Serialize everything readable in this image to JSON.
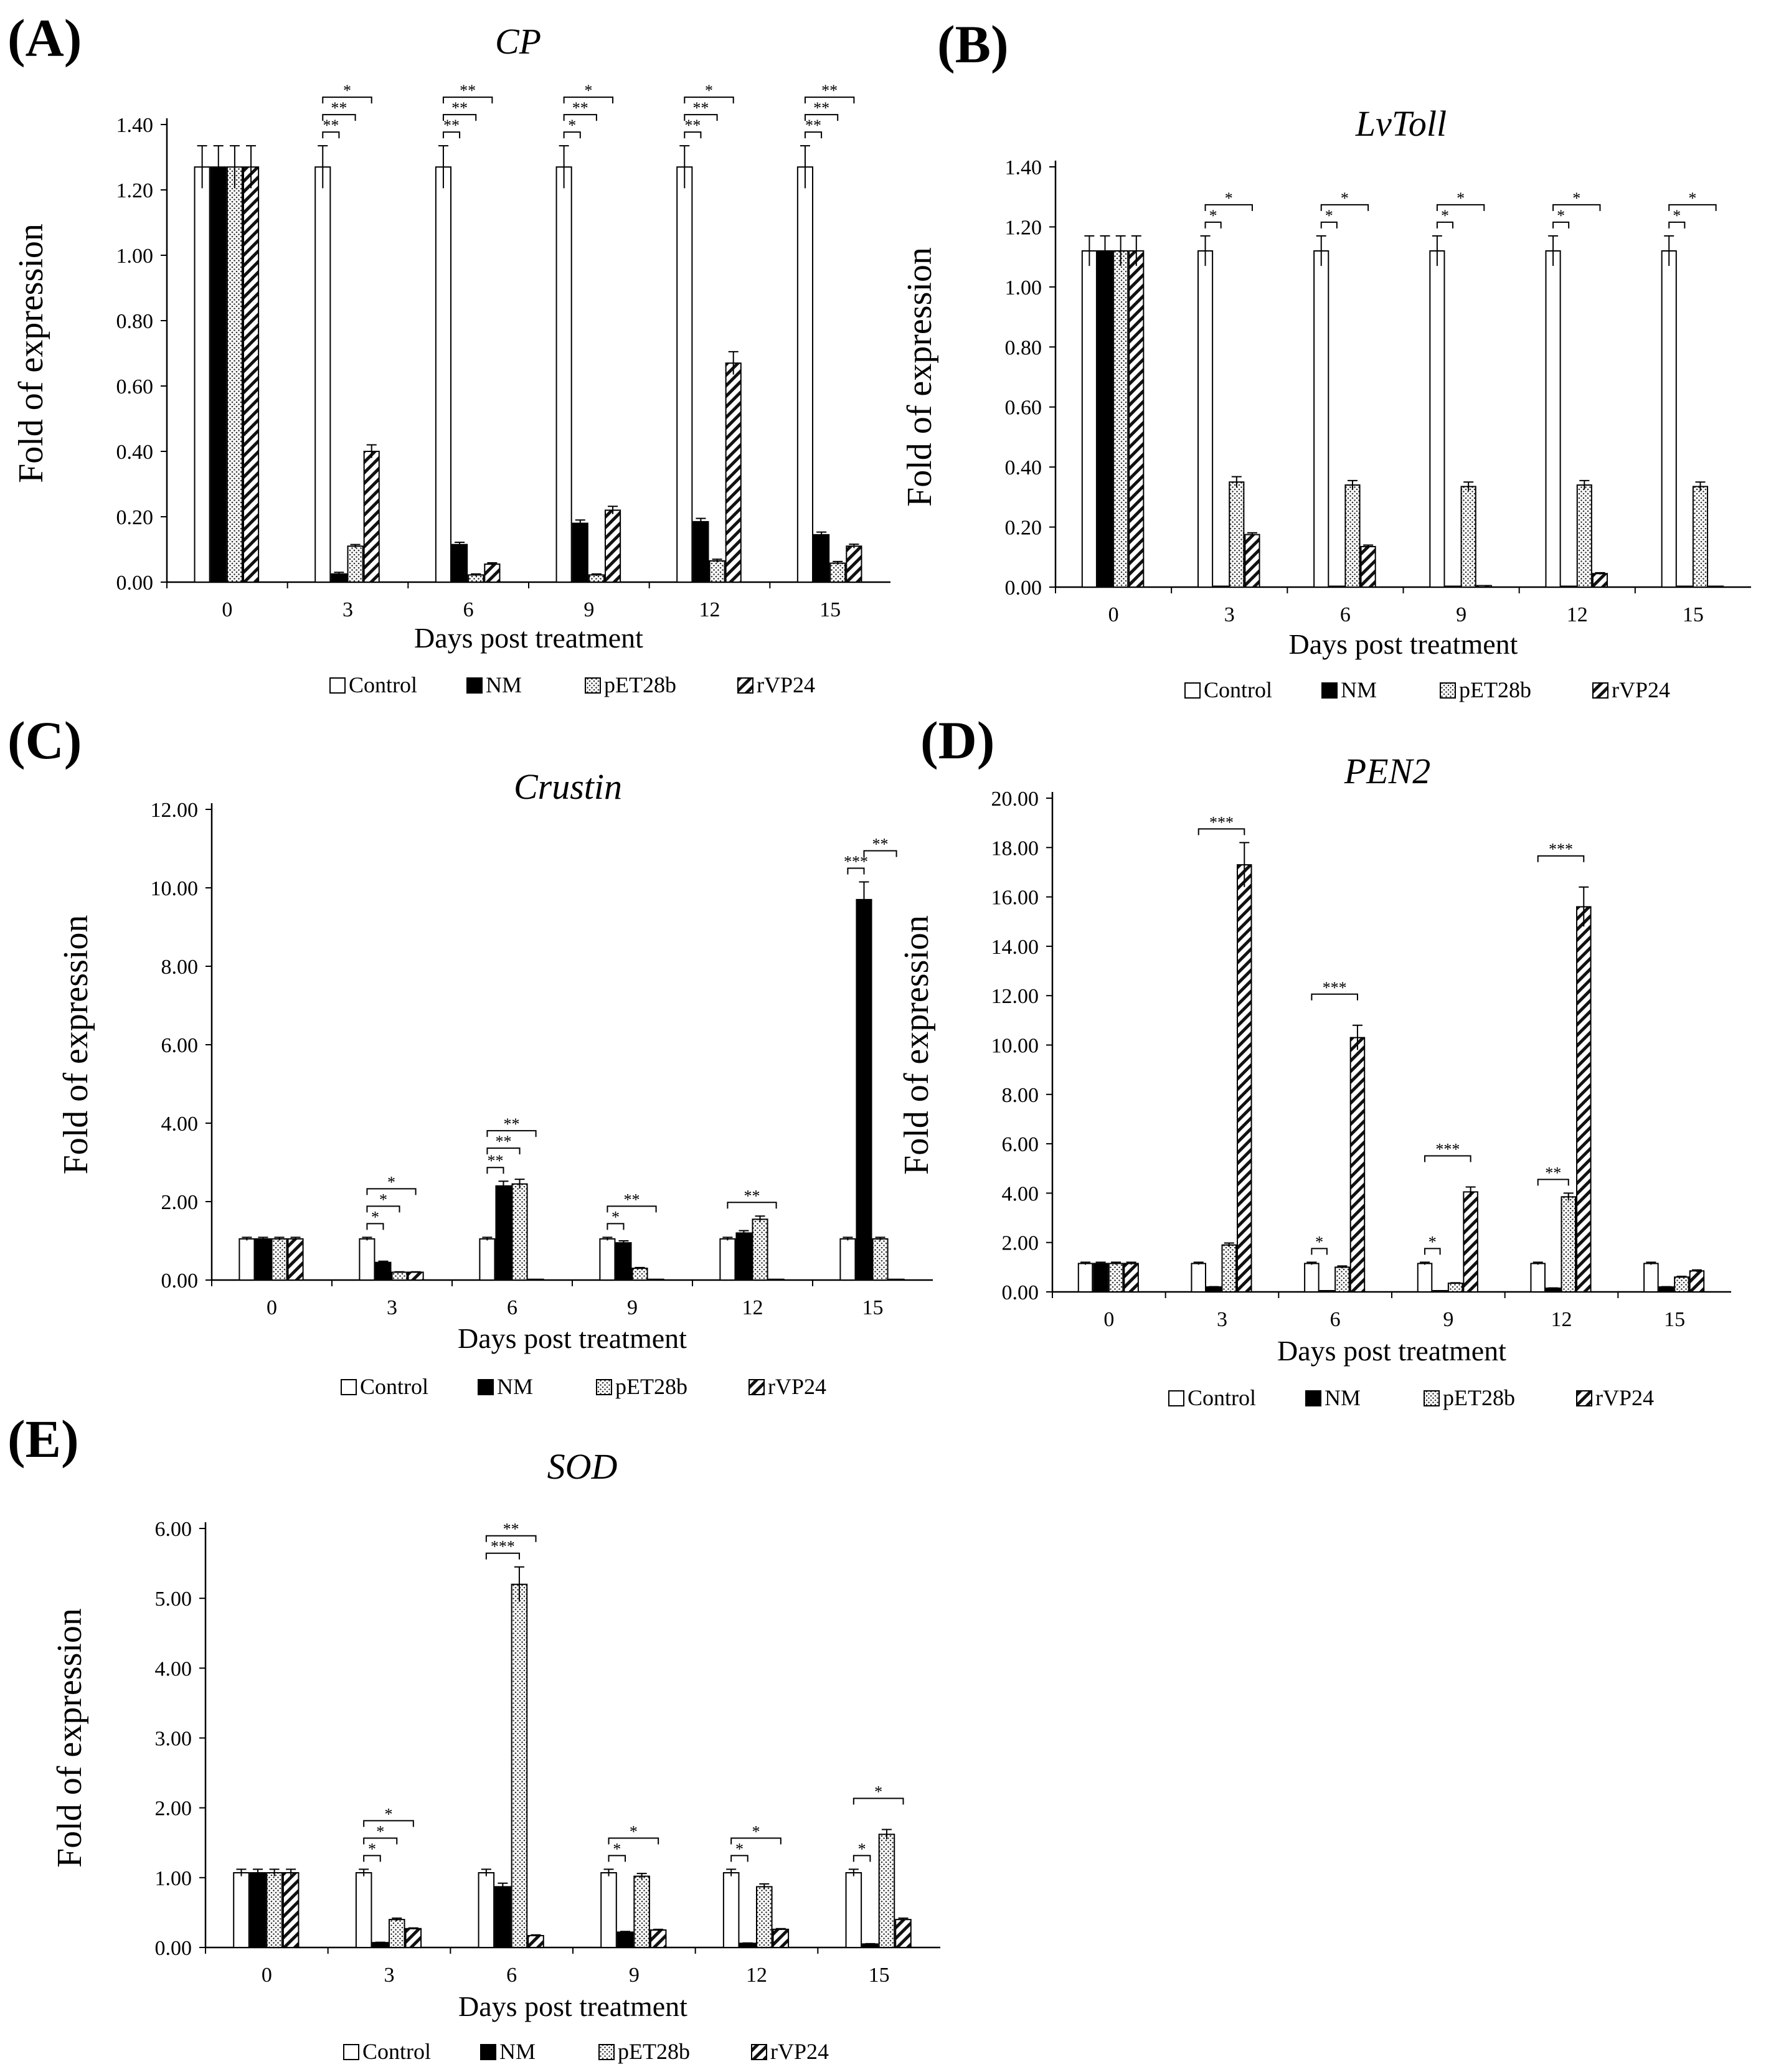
{
  "figure": {
    "legend_labels": [
      "Control",
      "NM",
      "pET28b",
      "rVP24"
    ]
  },
  "chart_data": [
    {
      "panel_label": "(A)",
      "type": "bar",
      "title": "CP",
      "xlabel": "Days post treatment",
      "ylabel": "Fold of expression",
      "categories": [
        "0",
        "3",
        "6",
        "9",
        "12",
        "15"
      ],
      "ylim": [
        0,
        1.4
      ],
      "yticks": [
        0,
        0.2,
        0.4,
        0.6,
        0.8,
        1.0,
        1.2,
        1.4
      ],
      "tick_decimals": 2,
      "legend": [
        "Control",
        "NM",
        "pET28b",
        "rVP24"
      ],
      "series": [
        {
          "name": "Control",
          "values": [
            1.27,
            1.27,
            1.27,
            1.27,
            1.27,
            1.27
          ],
          "errors": [
            0.065,
            0.065,
            0.065,
            0.065,
            0.065,
            0.065
          ]
        },
        {
          "name": "NM",
          "values": [
            1.27,
            0.025,
            0.115,
            0.18,
            0.185,
            0.145
          ],
          "errors": [
            0.065,
            0.005,
            0.007,
            0.01,
            0.01,
            0.008
          ]
        },
        {
          "name": "pET28b",
          "values": [
            1.27,
            0.11,
            0.022,
            0.022,
            0.065,
            0.058
          ],
          "errors": [
            0.065,
            0.005,
            0.003,
            0.003,
            0.005,
            0.005
          ]
        },
        {
          "name": "rVP24",
          "values": [
            1.27,
            0.4,
            0.055,
            0.22,
            0.67,
            0.11
          ],
          "errors": [
            0.065,
            0.02,
            0.004,
            0.012,
            0.035,
            0.006
          ]
        }
      ],
      "significance": [
        {
          "cat": 1,
          "to": 1,
          "label": "**"
        },
        {
          "cat": 1,
          "to": 2,
          "label": "**"
        },
        {
          "cat": 1,
          "to": 3,
          "label": "*"
        },
        {
          "cat": 2,
          "to": 1,
          "label": "**"
        },
        {
          "cat": 2,
          "to": 2,
          "label": "**"
        },
        {
          "cat": 2,
          "to": 3,
          "label": "**"
        },
        {
          "cat": 3,
          "to": 1,
          "label": "*"
        },
        {
          "cat": 3,
          "to": 2,
          "label": "**"
        },
        {
          "cat": 3,
          "to": 3,
          "label": "*"
        },
        {
          "cat": 4,
          "to": 1,
          "label": "**"
        },
        {
          "cat": 4,
          "to": 2,
          "label": "**"
        },
        {
          "cat": 4,
          "to": 3,
          "label": "*"
        },
        {
          "cat": 5,
          "to": 1,
          "label": "**"
        },
        {
          "cat": 5,
          "to": 2,
          "label": "**"
        },
        {
          "cat": 5,
          "to": 3,
          "label": "**"
        }
      ]
    },
    {
      "panel_label": "(B)",
      "type": "bar",
      "title": "LvToll",
      "xlabel": "Days post treatment",
      "ylabel": "Fold of expression",
      "categories": [
        "0",
        "3",
        "6",
        "9",
        "12",
        "15"
      ],
      "ylim": [
        0,
        1.4
      ],
      "yticks": [
        0,
        0.2,
        0.4,
        0.6,
        0.8,
        1.0,
        1.2,
        1.4
      ],
      "tick_decimals": 2,
      "legend": [
        "Control",
        "NM",
        "pET28b",
        "rVP24"
      ],
      "series": [
        {
          "name": "Control",
          "values": [
            1.12,
            1.12,
            1.12,
            1.12,
            1.12,
            1.12
          ],
          "errors": [
            0.05,
            0.05,
            0.05,
            0.05,
            0.05,
            0.05
          ]
        },
        {
          "name": "NM",
          "values": [
            1.12,
            0.003,
            0.003,
            0.003,
            0.003,
            0.003
          ],
          "errors": [
            0.05,
            0,
            0,
            0,
            0,
            0
          ]
        },
        {
          "name": "pET28b",
          "values": [
            1.12,
            0.35,
            0.34,
            0.335,
            0.34,
            0.335
          ],
          "errors": [
            0.05,
            0.018,
            0.015,
            0.015,
            0.015,
            0.015
          ]
        },
        {
          "name": "rVP24",
          "values": [
            1.12,
            0.175,
            0.135,
            0.005,
            0.045,
            0.003
          ],
          "errors": [
            0.05,
            0.006,
            0.005,
            0,
            0.003,
            0
          ]
        }
      ],
      "significance": [
        {
          "cat": 1,
          "to": 1,
          "label": "*"
        },
        {
          "cat": 1,
          "to": 3,
          "label": "*"
        },
        {
          "cat": 2,
          "to": 1,
          "label": "*"
        },
        {
          "cat": 2,
          "to": 3,
          "label": "*"
        },
        {
          "cat": 3,
          "to": 1,
          "label": "*"
        },
        {
          "cat": 3,
          "to": 3,
          "label": "*"
        },
        {
          "cat": 4,
          "to": 1,
          "label": "*"
        },
        {
          "cat": 4,
          "to": 3,
          "label": "*"
        },
        {
          "cat": 5,
          "to": 1,
          "label": "*"
        },
        {
          "cat": 5,
          "to": 3,
          "label": "*"
        }
      ]
    },
    {
      "panel_label": "(C)",
      "type": "bar",
      "title": "Crustin",
      "xlabel": "Days post treatment",
      "ylabel": "Fold of expression",
      "categories": [
        "0",
        "3",
        "6",
        "9",
        "12",
        "15"
      ],
      "ylim": [
        0,
        12
      ],
      "yticks": [
        0,
        2,
        4,
        6,
        8,
        10,
        12
      ],
      "tick_decimals": 2,
      "legend": [
        "Control",
        "NM",
        "pET28b",
        "rVP24"
      ],
      "series": [
        {
          "name": "Control",
          "values": [
            1.05,
            1.05,
            1.05,
            1.05,
            1.05,
            1.05
          ],
          "errors": [
            0.04,
            0.04,
            0.04,
            0.04,
            0.04,
            0.04
          ]
        },
        {
          "name": "NM",
          "values": [
            1.05,
            0.45,
            2.4,
            0.95,
            1.2,
            9.7
          ],
          "errors": [
            0.04,
            0.03,
            0.12,
            0.05,
            0.06,
            0.45
          ]
        },
        {
          "name": "pET28b",
          "values": [
            1.05,
            0.2,
            2.45,
            0.3,
            1.55,
            1.05
          ],
          "errors": [
            0.04,
            0.01,
            0.12,
            0.02,
            0.08,
            0.04
          ]
        },
        {
          "name": "rVP24",
          "values": [
            1.05,
            0.2,
            0.02,
            0.02,
            0.02,
            0.02
          ],
          "errors": [
            0.04,
            0.01,
            0,
            0,
            0,
            0
          ]
        }
      ],
      "significance": [
        {
          "cat": 1,
          "to": 1,
          "label": "*"
        },
        {
          "cat": 1,
          "to": 2,
          "label": "*"
        },
        {
          "cat": 1,
          "to": 3,
          "label": "*"
        },
        {
          "cat": 2,
          "to": 1,
          "label": "**"
        },
        {
          "cat": 2,
          "to": 2,
          "label": "**"
        },
        {
          "cat": 2,
          "to": 3,
          "label": "**"
        },
        {
          "cat": 3,
          "to": 1,
          "label": "*"
        },
        {
          "cat": 3,
          "to": 3,
          "label": "**"
        },
        {
          "cat": 4,
          "to": 3,
          "label": "**"
        },
        {
          "cat": 5,
          "to": 1,
          "label": "***"
        },
        {
          "cat": 5,
          "from": 1,
          "to": 3,
          "label": "**"
        }
      ]
    },
    {
      "panel_label": "(D)",
      "type": "bar",
      "title": "PEN2",
      "xlabel": "Days post treatment",
      "ylabel": "Fold of expression",
      "categories": [
        "0",
        "3",
        "6",
        "9",
        "12",
        "15"
      ],
      "ylim": [
        0,
        20
      ],
      "yticks": [
        0,
        2,
        4,
        6,
        8,
        10,
        12,
        14,
        16,
        18,
        20
      ],
      "tick_decimals": 2,
      "legend": [
        "Control",
        "NM",
        "pET28b",
        "rVP24"
      ],
      "series": [
        {
          "name": "Control",
          "values": [
            1.15,
            1.15,
            1.15,
            1.15,
            1.15,
            1.15
          ],
          "errors": [
            0.05,
            0.05,
            0.05,
            0.05,
            0.05,
            0.05
          ]
        },
        {
          "name": "NM",
          "values": [
            1.15,
            0.2,
            0.05,
            0.05,
            0.15,
            0.2
          ],
          "errors": [
            0.05,
            0.01,
            0,
            0,
            0.01,
            0.01
          ]
        },
        {
          "name": "pET28b",
          "values": [
            1.15,
            1.9,
            1.0,
            0.35,
            3.85,
            0.6
          ],
          "errors": [
            0.05,
            0.08,
            0.05,
            0.02,
            0.15,
            0.03
          ]
        },
        {
          "name": "rVP24",
          "values": [
            1.15,
            17.3,
            10.3,
            4.05,
            15.6,
            0.85
          ],
          "errors": [
            0.05,
            0.9,
            0.5,
            0.2,
            0.8,
            0.04
          ]
        }
      ],
      "significance": [
        {
          "cat": 1,
          "to": 3,
          "label": "***"
        },
        {
          "cat": 2,
          "to": 1,
          "label": "*"
        },
        {
          "cat": 2,
          "to": 3,
          "label": "***"
        },
        {
          "cat": 3,
          "to": 1,
          "label": "*"
        },
        {
          "cat": 3,
          "to": 3,
          "label": "***"
        },
        {
          "cat": 4,
          "to": 2,
          "label": "**"
        },
        {
          "cat": 4,
          "to": 3,
          "label": "***"
        }
      ]
    },
    {
      "panel_label": "(E)",
      "type": "bar",
      "title": "SOD",
      "xlabel": "Days post treatment",
      "ylabel": "Fold of expression",
      "categories": [
        "0",
        "3",
        "6",
        "9",
        "12",
        "15"
      ],
      "ylim": [
        0,
        6
      ],
      "yticks": [
        0,
        1,
        2,
        3,
        4,
        5,
        6
      ],
      "tick_decimals": 2,
      "legend": [
        "Control",
        "NM",
        "pET28b",
        "rVP24"
      ],
      "series": [
        {
          "name": "Control",
          "values": [
            1.07,
            1.07,
            1.07,
            1.07,
            1.07,
            1.07
          ],
          "errors": [
            0.05,
            0.05,
            0.05,
            0.05,
            0.05,
            0.05
          ]
        },
        {
          "name": "NM",
          "values": [
            1.07,
            0.07,
            0.87,
            0.22,
            0.06,
            0.05
          ],
          "errors": [
            0.05,
            0.005,
            0.05,
            0.01,
            0.005,
            0.005
          ]
        },
        {
          "name": "pET28b",
          "values": [
            1.07,
            0.4,
            5.2,
            1.02,
            0.87,
            1.62
          ],
          "errors": [
            0.05,
            0.02,
            0.25,
            0.04,
            0.04,
            0.07
          ]
        },
        {
          "name": "rVP24",
          "values": [
            1.07,
            0.27,
            0.17,
            0.25,
            0.26,
            0.4
          ],
          "errors": [
            0.05,
            0.01,
            0.01,
            0.01,
            0.01,
            0.02
          ]
        }
      ],
      "significance": [
        {
          "cat": 1,
          "to": 1,
          "label": "*"
        },
        {
          "cat": 1,
          "to": 2,
          "label": "*"
        },
        {
          "cat": 1,
          "to": 3,
          "label": "*"
        },
        {
          "cat": 2,
          "to": 2,
          "label": "***"
        },
        {
          "cat": 2,
          "to": 3,
          "label": "**"
        },
        {
          "cat": 3,
          "to": 1,
          "label": "*"
        },
        {
          "cat": 3,
          "to": 3,
          "label": "*"
        },
        {
          "cat": 4,
          "to": 1,
          "label": "*"
        },
        {
          "cat": 4,
          "to": 3,
          "label": "*"
        },
        {
          "cat": 5,
          "to": 1,
          "label": "*"
        },
        {
          "cat": 5,
          "to": 3,
          "label": "*"
        }
      ]
    }
  ]
}
